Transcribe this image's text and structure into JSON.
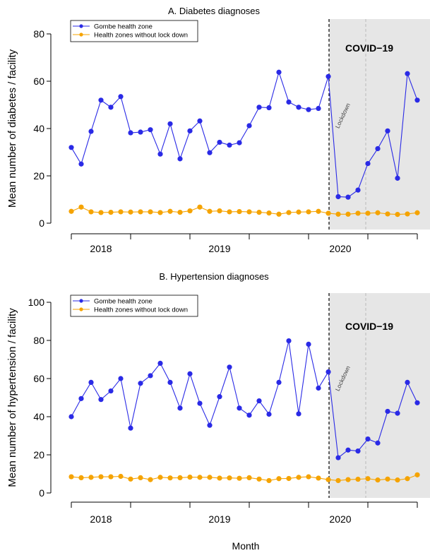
{
  "xlabel": "Month",
  "chart_data": [
    {
      "type": "line",
      "title": "A.  Diabetes diagnoses",
      "ylabel": "Mean number of diabetes / facility",
      "ylim": [
        0,
        80
      ],
      "yticks": [
        0,
        20,
        40,
        60,
        80
      ],
      "x_group_labels": [
        "2018",
        "2019",
        "2020"
      ],
      "annotation": "COVID−19",
      "lockdown_label": "Lockdown",
      "lockdown_month_index": 26,
      "shaded_from_month_index": 26,
      "legend_position": "top-left",
      "series": [
        {
          "name": "Gombe health zone",
          "color": "#2a2ae6",
          "values": [
            32,
            25,
            38.8,
            52,
            49,
            53.5,
            38.2,
            38.5,
            39.5,
            29.2,
            42,
            27.2,
            39,
            43.2,
            29.8,
            34.2,
            33,
            34,
            41.2,
            49,
            48.8,
            63.8,
            51.2,
            49,
            48,
            48.5,
            62,
            11.2,
            11,
            14,
            25.2,
            31.5,
            39,
            19,
            63.2,
            52
          ]
        },
        {
          "name": "Health zones without lock down",
          "color": "#f5a300",
          "values": [
            5,
            6.8,
            4.8,
            4.5,
            4.6,
            4.8,
            4.7,
            4.8,
            4.8,
            4.5,
            5,
            4.6,
            5.2,
            6.8,
            5,
            5.2,
            4.8,
            4.9,
            4.8,
            4.6,
            4.3,
            3.8,
            4.5,
            4.7,
            4.8,
            5,
            4.2,
            3.8,
            3.8,
            4.2,
            4.2,
            4.4,
            3.9,
            3.7,
            3.9,
            4.4
          ]
        }
      ]
    },
    {
      "type": "line",
      "title": "B.  Hypertension diagnoses",
      "ylabel": "Mean number of hypertension / facility",
      "ylim": [
        0,
        100
      ],
      "yticks": [
        0,
        20,
        40,
        60,
        80,
        100
      ],
      "x_group_labels": [
        "2018",
        "2019",
        "2020"
      ],
      "annotation": "COVID−19",
      "lockdown_label": "Lockdown",
      "lockdown_month_index": 26,
      "shaded_from_month_index": 26,
      "legend_position": "top-left",
      "series": [
        {
          "name": "Gombe health zone",
          "color": "#2a2ae6",
          "values": [
            40,
            49.5,
            58,
            49,
            53.5,
            60,
            34,
            57.5,
            61.5,
            68,
            58,
            44.5,
            62.5,
            47,
            35.5,
            50.5,
            66,
            44.5,
            40.8,
            48.3,
            41.3,
            58,
            79.8,
            41.5,
            78,
            55,
            63.5,
            18.5,
            22.5,
            22,
            28.3,
            26.2,
            42.8,
            41.8,
            58,
            47.3
          ]
        },
        {
          "name": "Health zones without lock down",
          "color": "#f5a300",
          "values": [
            8.5,
            8,
            8.2,
            8.5,
            8.5,
            8.7,
            7.3,
            8,
            7,
            8.2,
            7.9,
            8,
            8.3,
            8.2,
            8.2,
            7.8,
            7.9,
            7.7,
            8,
            7.3,
            6.5,
            7.5,
            7.6,
            8.2,
            8.5,
            7.8,
            7,
            6.5,
            7,
            7.2,
            7.5,
            6.8,
            7.3,
            6.8,
            7.5,
            9.5
          ]
        }
      ]
    }
  ]
}
